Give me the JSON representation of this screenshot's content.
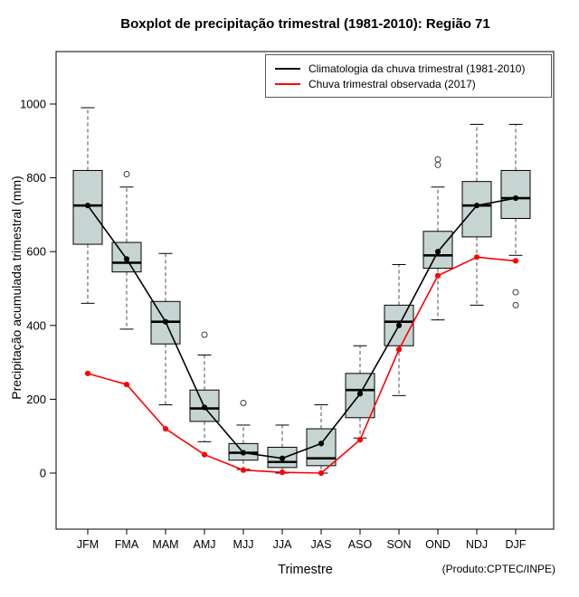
{
  "title": "Boxplot de precipitação trimestral (1981-2010): Região 71",
  "xlabel": "Trimestre",
  "ylabel": "Precipitação acumulada trimestral (mm)",
  "footnote": "(Produto:CPTEC/INPE)",
  "legend": {
    "items": [
      {
        "label": "Climatologia da chuva trimestral (1981-2010)",
        "color": "#000000"
      },
      {
        "label": "Chuva trimestral observada (2017)",
        "color": "#ff0000"
      }
    ]
  },
  "chart_data": {
    "type": "boxplot",
    "title": "Boxplot de precipitação trimestral (1981-2010): Região 71",
    "xlabel": "Trimestre",
    "ylabel": "Precipitação acumulada trimestral (mm)",
    "categories": [
      "JFM",
      "FMA",
      "MAM",
      "AMJ",
      "MJJ",
      "JJA",
      "JAS",
      "ASO",
      "SON",
      "OND",
      "NDJ",
      "DJF"
    ],
    "y_ticks": [
      0,
      200,
      400,
      600,
      800,
      1000
    ],
    "ylim": [
      -150,
      1140
    ],
    "grid": false,
    "legend_position": "top-right-inside",
    "box_fill": "#c6d4d2",
    "boxes": [
      {
        "category": "JFM",
        "low": 460,
        "q1": 620,
        "median": 725,
        "q3": 820,
        "high": 990,
        "outliers": []
      },
      {
        "category": "FMA",
        "low": 390,
        "q1": 545,
        "median": 570,
        "q3": 625,
        "high": 775,
        "outliers": [
          810
        ]
      },
      {
        "category": "MAM",
        "low": 185,
        "q1": 350,
        "median": 410,
        "q3": 465,
        "high": 595,
        "outliers": []
      },
      {
        "category": "AMJ",
        "low": 85,
        "q1": 140,
        "median": 175,
        "q3": 225,
        "high": 320,
        "outliers": [
          375
        ]
      },
      {
        "category": "MJJ",
        "low": 10,
        "q1": 35,
        "median": 55,
        "q3": 80,
        "high": 130,
        "outliers": [
          190
        ]
      },
      {
        "category": "JJA",
        "low": 0,
        "q1": 15,
        "median": 30,
        "q3": 70,
        "high": 130,
        "outliers": []
      },
      {
        "category": "JAS",
        "low": 0,
        "q1": 20,
        "median": 40,
        "q3": 120,
        "high": 185,
        "outliers": []
      },
      {
        "category": "ASO",
        "low": 95,
        "q1": 150,
        "median": 225,
        "q3": 270,
        "high": 345,
        "outliers": []
      },
      {
        "category": "SON",
        "low": 210,
        "q1": 345,
        "median": 410,
        "q3": 455,
        "high": 565,
        "outliers": []
      },
      {
        "category": "OND",
        "low": 415,
        "q1": 555,
        "median": 590,
        "q3": 655,
        "high": 775,
        "outliers": [
          835,
          850
        ]
      },
      {
        "category": "NDJ",
        "low": 455,
        "q1": 640,
        "median": 725,
        "q3": 790,
        "high": 945,
        "outliers": []
      },
      {
        "category": "DJF",
        "low": 590,
        "q1": 690,
        "median": 745,
        "q3": 820,
        "high": 945,
        "outliers": [
          455,
          490
        ]
      }
    ],
    "series": [
      {
        "name": "Climatologia da chuva trimestral (1981-2010)",
        "color": "#000000",
        "values": [
          725,
          580,
          410,
          178,
          55,
          40,
          80,
          215,
          400,
          600,
          725,
          745
        ]
      },
      {
        "name": "Chuva trimestral observada (2017)",
        "color": "#ff0000",
        "values": [
          270,
          240,
          120,
          50,
          8,
          2,
          0,
          90,
          335,
          535,
          585,
          575
        ]
      }
    ]
  }
}
